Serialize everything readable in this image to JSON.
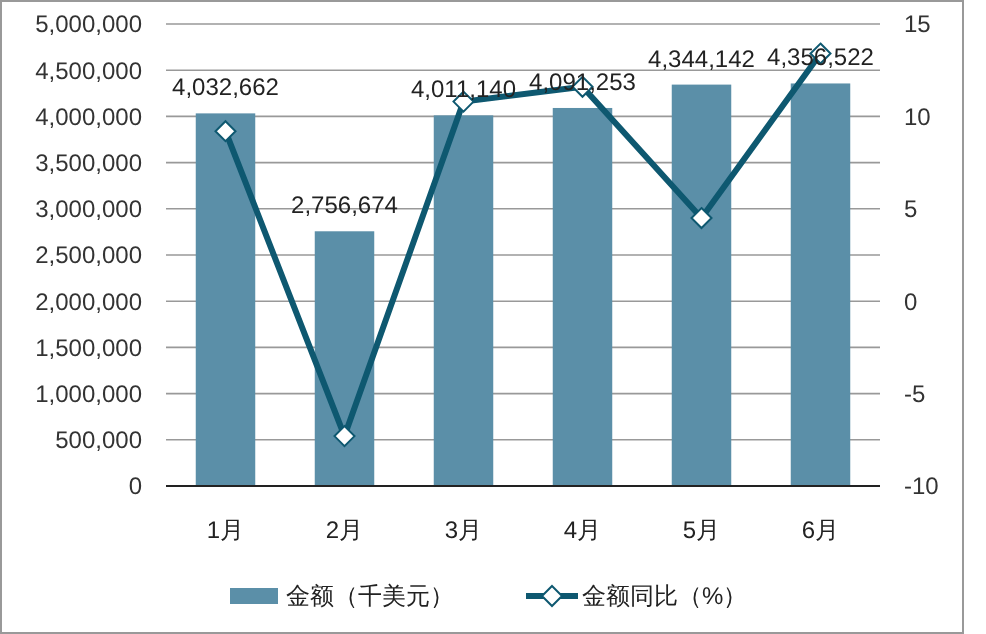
{
  "chart_data": {
    "type": "bar",
    "categories": [
      "1月",
      "2月",
      "3月",
      "4月",
      "5月",
      "6月"
    ],
    "series": [
      {
        "name": "金额（千美元）",
        "color": "#5b8fa8",
        "values": [
          4032662,
          2756674,
          4011140,
          4091253,
          4344142,
          4356522
        ],
        "value_labels": [
          "4,032,662",
          "2,756,674",
          "4,011,140",
          "4,091,253",
          "4,344,142",
          "4,356,522"
        ]
      },
      {
        "name": "金额同比（%）",
        "type": "line",
        "axis": "y2",
        "color": "#0e5870",
        "marker": "diamond",
        "values": [
          9.2,
          -7.3,
          10.8,
          11.6,
          4.5,
          13.4
        ]
      }
    ],
    "ylim": [
      0,
      5000000
    ],
    "yticks": [
      {
        "value": 0,
        "label": "0"
      },
      {
        "value": 500000,
        "label": "500,000"
      },
      {
        "value": 1000000,
        "label": "1,000,000"
      },
      {
        "value": 1500000,
        "label": "1,500,000"
      },
      {
        "value": 2000000,
        "label": "2,000,000"
      },
      {
        "value": 2500000,
        "label": "2,500,000"
      },
      {
        "value": 3000000,
        "label": "3,000,000"
      },
      {
        "value": 3500000,
        "label": "3,500,000"
      },
      {
        "value": 4000000,
        "label": "4,000,000"
      },
      {
        "value": 4500000,
        "label": "4,500,000"
      },
      {
        "value": 5000000,
        "label": "5,000,000"
      }
    ],
    "y2lim": [
      -10,
      15
    ],
    "y2ticks": [
      -10,
      -5,
      0,
      5,
      10,
      15
    ],
    "grid": "y",
    "legend": "bottom"
  }
}
